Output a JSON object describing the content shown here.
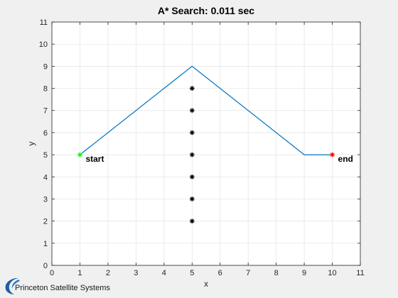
{
  "chart_data": {
    "type": "line",
    "title": "A* Search: 0.011 sec",
    "xlabel": "x",
    "ylabel": "y",
    "xlim": [
      0,
      11
    ],
    "ylim": [
      0,
      11
    ],
    "xticks": [
      0,
      1,
      2,
      3,
      4,
      5,
      6,
      7,
      8,
      9,
      10,
      11
    ],
    "yticks": [
      0,
      1,
      2,
      3,
      4,
      5,
      6,
      7,
      8,
      9,
      10,
      11
    ],
    "grid": true,
    "path": {
      "x": [
        1,
        5,
        9,
        10
      ],
      "y": [
        5,
        9,
        5,
        5
      ],
      "color": "#0072BD"
    },
    "obstacles": {
      "x": [
        5,
        5,
        5,
        5,
        5,
        5,
        5
      ],
      "y": [
        2,
        3,
        4,
        5,
        6,
        7,
        8
      ],
      "color": "#000000"
    },
    "start": {
      "x": 1,
      "y": 5,
      "label": "start",
      "color": "#00ff00"
    },
    "end": {
      "x": 10,
      "y": 5,
      "label": "end",
      "color": "#ff0000"
    }
  },
  "footer": {
    "logo_text": "Princeton Satellite Systems"
  }
}
